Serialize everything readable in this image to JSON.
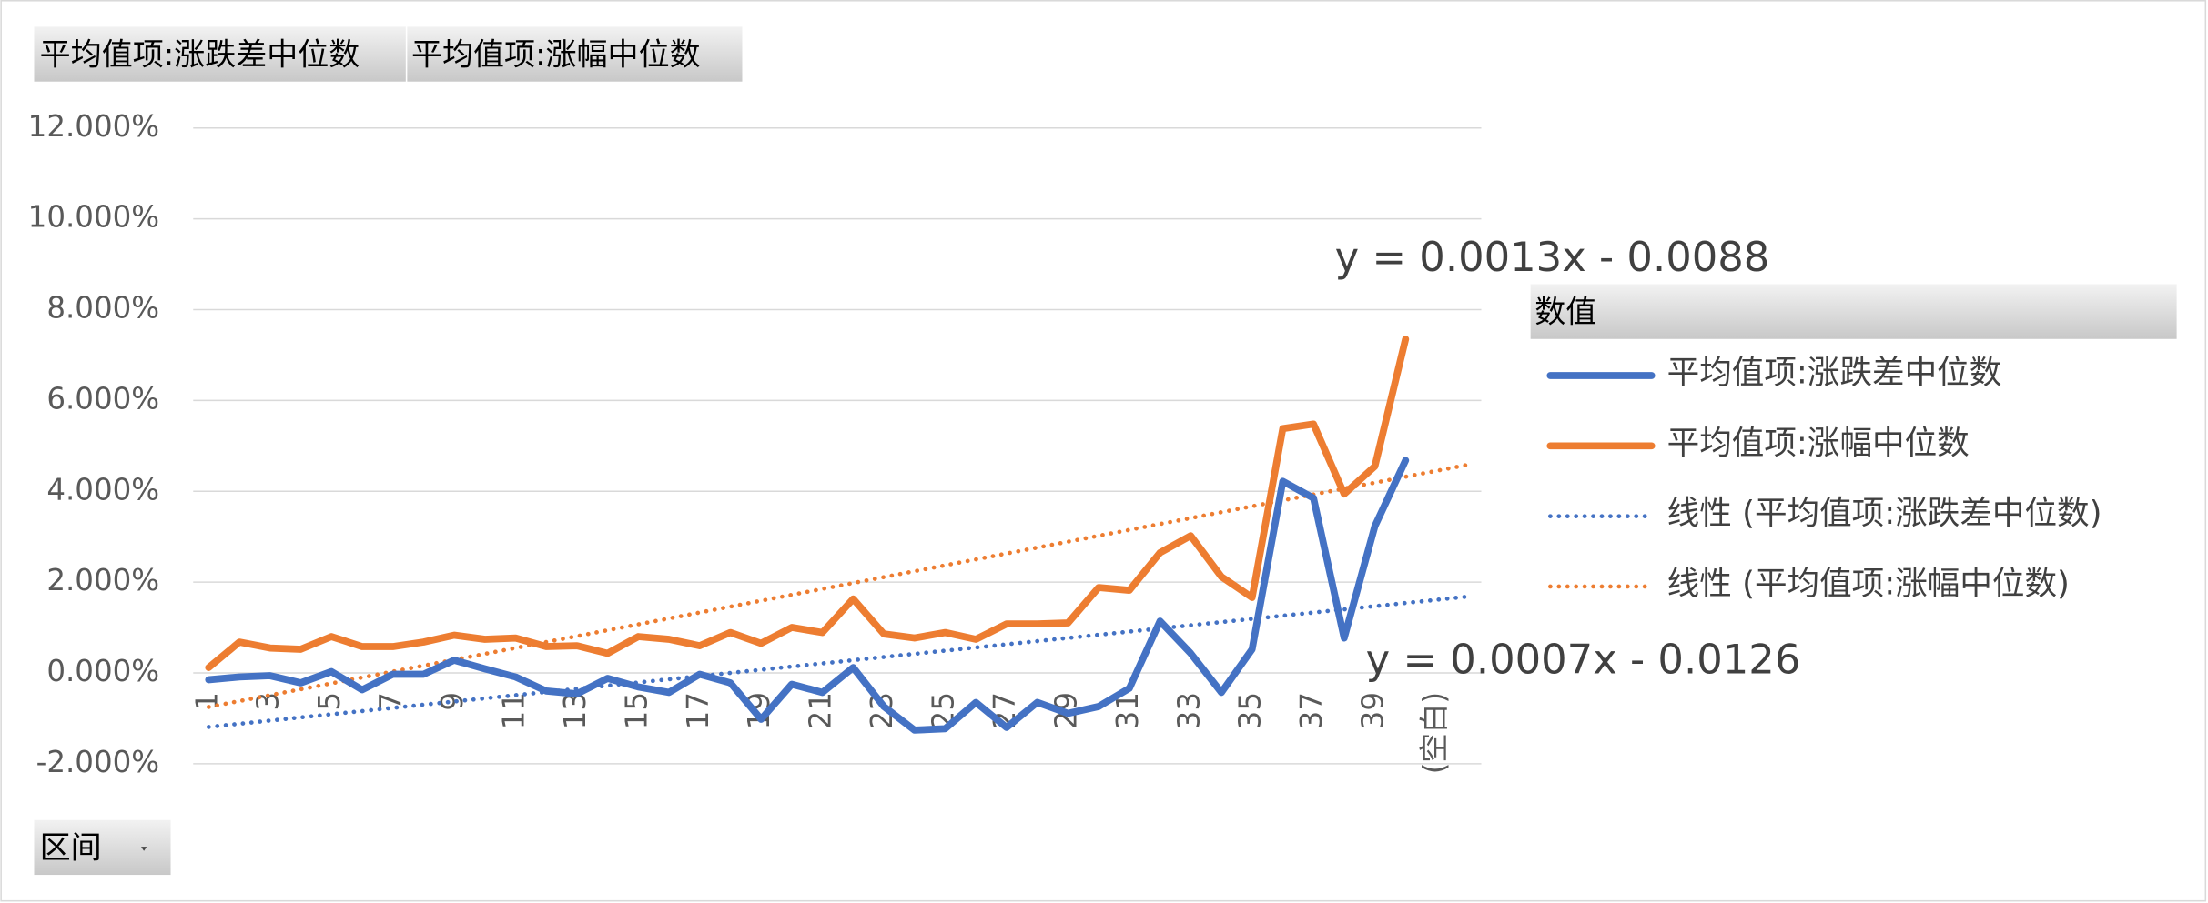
{
  "field_buttons": {
    "values": [
      "平均值项:涨跌差中位数",
      "平均值项:涨幅中位数"
    ],
    "axis": "区间"
  },
  "chart_data": {
    "type": "line",
    "categories": [
      "1",
      null,
      "3",
      null,
      "5",
      null,
      "7",
      null,
      "9",
      null,
      "11",
      null,
      "13",
      null,
      "15",
      null,
      "17",
      null,
      "19",
      null,
      "21",
      null,
      "23",
      null,
      "25",
      null,
      "27",
      null,
      "29",
      null,
      "31",
      null,
      "33",
      null,
      "35",
      null,
      "37",
      null,
      "39",
      null,
      "(空白)"
    ],
    "ylim": [
      -2,
      12
    ],
    "yticks": [
      {
        "value": -2,
        "label": "-2.000%"
      },
      {
        "value": 0,
        "label": "0.000%"
      },
      {
        "value": 2,
        "label": "2.000%"
      },
      {
        "value": 4,
        "label": "4.000%"
      },
      {
        "value": 6,
        "label": "6.000%"
      },
      {
        "value": 8,
        "label": "8.000%"
      },
      {
        "value": 10,
        "label": "10.000%"
      },
      {
        "value": 12,
        "label": "12.000%"
      }
    ],
    "grid": true,
    "legend_title": "数值",
    "series": [
      {
        "name": "平均值项:涨跌差中位数",
        "color": "#4472c4",
        "values": [
          -0.15,
          -0.09,
          -0.06,
          -0.22,
          0.03,
          -0.37,
          -0.03,
          -0.03,
          0.28,
          0.09,
          -0.09,
          -0.4,
          -0.46,
          -0.12,
          -0.31,
          -0.43,
          -0.03,
          -0.22,
          -1.02,
          -0.25,
          -0.43,
          0.12,
          -0.74,
          -1.26,
          -1.23,
          -0.65,
          -1.2,
          -0.65,
          -0.89,
          -0.74,
          -0.34,
          1.14,
          0.43,
          -0.43,
          0.52,
          4.22,
          3.85,
          0.77,
          3.23,
          4.68,
          null
        ]
      },
      {
        "name": "平均值项:涨幅中位数",
        "color": "#ed7d31",
        "values": [
          0.12,
          0.68,
          0.55,
          0.52,
          0.8,
          0.58,
          0.58,
          0.68,
          0.83,
          0.74,
          0.77,
          0.58,
          0.6,
          0.43,
          0.8,
          0.74,
          0.6,
          0.89,
          0.65,
          1.0,
          0.89,
          1.63,
          0.86,
          0.77,
          0.89,
          0.74,
          1.08,
          1.08,
          1.1,
          1.88,
          1.82,
          2.65,
          3.02,
          2.12,
          1.66,
          5.38,
          5.48,
          3.94,
          4.55,
          7.35,
          null
        ]
      }
    ],
    "trendlines": [
      {
        "name": "线性 (平均值项:涨跌差中位数)",
        "color": "#4472c4",
        "slope": 0.07,
        "intercept": -1.26,
        "equation": "y = 0.0007x - 0.0126"
      },
      {
        "name": "线性 (平均值项:涨幅中位数)",
        "color": "#ed7d31",
        "slope": 0.13,
        "intercept": -0.88,
        "equation": "y = 0.0013x - 0.0088"
      }
    ]
  }
}
